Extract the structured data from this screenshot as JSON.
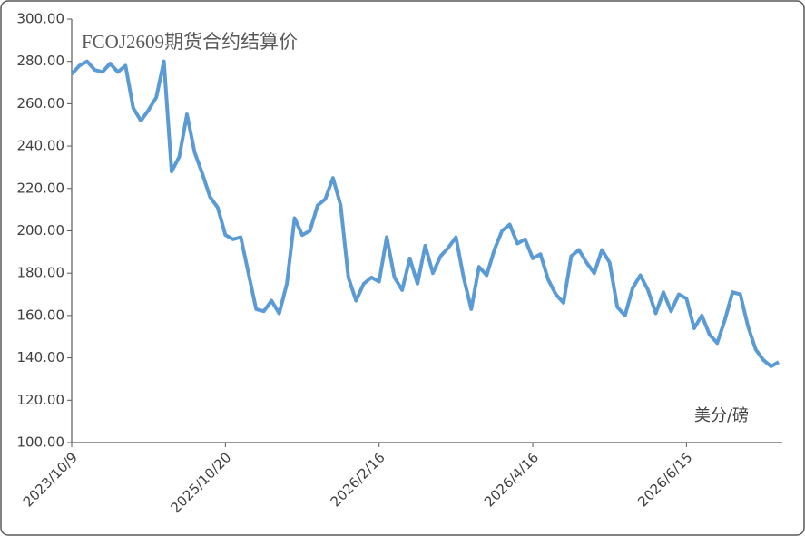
{
  "chart_data": {
    "type": "line",
    "title": "FCOJ2609期货合约结算价",
    "unit_label": "美分/磅",
    "categories": [
      "2023/10/9",
      null,
      null,
      null,
      null,
      null,
      null,
      null,
      null,
      null,
      null,
      null,
      null,
      null,
      null,
      null,
      null,
      null,
      null,
      null,
      "2025/10/20",
      null,
      null,
      null,
      null,
      null,
      null,
      null,
      null,
      null,
      null,
      null,
      null,
      null,
      null,
      null,
      null,
      null,
      null,
      null,
      "2026/2/16",
      null,
      null,
      null,
      null,
      null,
      null,
      null,
      null,
      null,
      null,
      null,
      null,
      null,
      null,
      null,
      null,
      null,
      null,
      null,
      "2026/4/16",
      null,
      null,
      null,
      null,
      null,
      null,
      null,
      null,
      null,
      null,
      null,
      null,
      null,
      null,
      null,
      null,
      null,
      null,
      null,
      "2026/6/15",
      null,
      null,
      null,
      null,
      null,
      null,
      null,
      null,
      null,
      null,
      null,
      null
    ],
    "series": [
      {
        "color": "#5b9bd5",
        "values": [
          274,
          278,
          280,
          276,
          275,
          279,
          275,
          278,
          258,
          252,
          257,
          263,
          280,
          228,
          235,
          255,
          237,
          227,
          216,
          211,
          198,
          196,
          197,
          180,
          163,
          162,
          167,
          161,
          175,
          206,
          198,
          200,
          212,
          215,
          225,
          212,
          178,
          167,
          175,
          178,
          176,
          197,
          178,
          172,
          187,
          175,
          193,
          180,
          188,
          192,
          197,
          178,
          163,
          183,
          179,
          191,
          200,
          203,
          194,
          196,
          187,
          189,
          177,
          170,
          166,
          188,
          191,
          185,
          180,
          191,
          185,
          164,
          160,
          173,
          179,
          172,
          161,
          171,
          162,
          170,
          168,
          154,
          160,
          151,
          147,
          158,
          171,
          170,
          155,
          144,
          139,
          136,
          138
        ]
      }
    ],
    "ylim": [
      100,
      300
    ],
    "yticks": [
      {
        "value": 100,
        "label": "100.00"
      },
      {
        "value": 120,
        "label": "120.00"
      },
      {
        "value": 140,
        "label": "140.00"
      },
      {
        "value": 160,
        "label": "160.00"
      },
      {
        "value": 180,
        "label": "180.00"
      },
      {
        "value": 200,
        "label": "200.00"
      },
      {
        "value": 220,
        "label": "220.00"
      },
      {
        "value": 240,
        "label": "240.00"
      },
      {
        "value": 260,
        "label": "260.00"
      },
      {
        "value": 280,
        "label": "280.00"
      },
      {
        "value": 300,
        "label": "300.00"
      }
    ],
    "grid": false
  }
}
